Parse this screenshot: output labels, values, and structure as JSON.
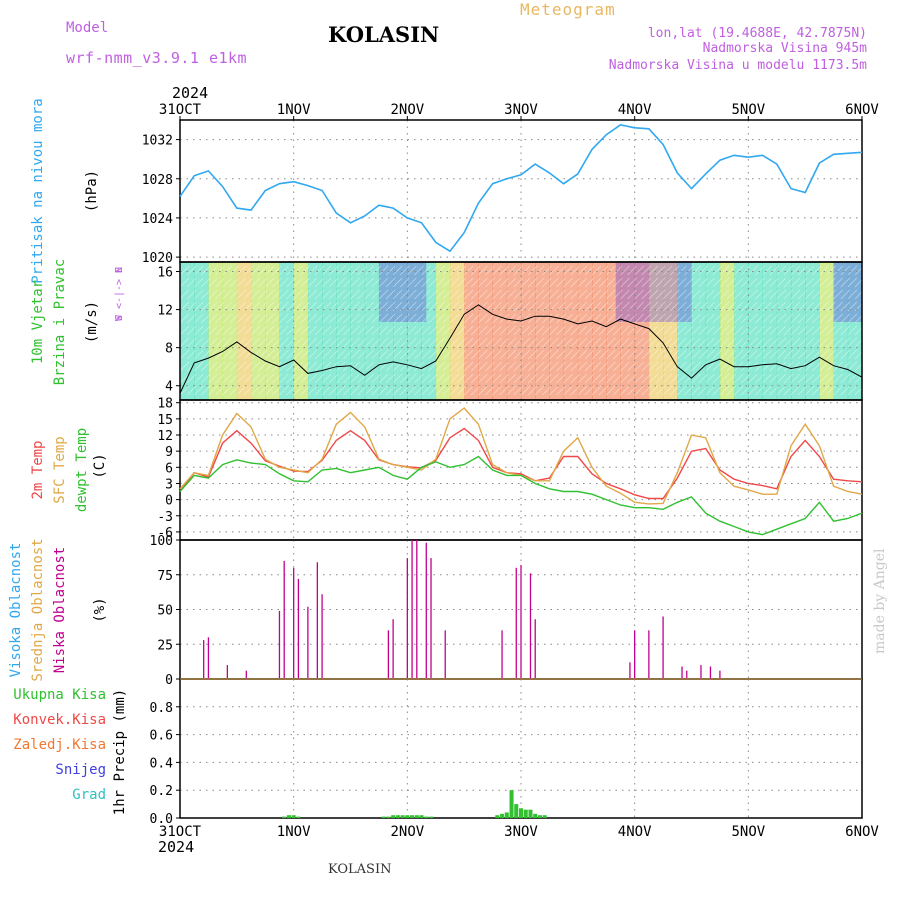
{
  "header": {
    "model_label": "Model",
    "model_name": "wrf-nmm_v3.9.1  e1km",
    "station": "KOLASIN",
    "meteogram": "Meteogram",
    "lonlat": "lon,lat (19.4688E, 42.7875N)",
    "elevation": "Nadmorska Visina 945m",
    "model_elevation": "Nadmorska Visina u modelu 1173.5m",
    "year_top": "2024",
    "year_bottom": "2024",
    "footer_station": "KOLASIN",
    "credit": "made by Angel"
  },
  "colors": {
    "pressure": "#30a8f0",
    "temp2m": "#f04848",
    "sfc_temp": "#e0a848",
    "dewpoint": "#30c030",
    "clouds_low": "#c00090",
    "precip_total": "#30c030",
    "label_purple": "#c060e0"
  },
  "chart_data": [
    {
      "type": "line",
      "panel": "pressure",
      "x_ticks": [
        "31OCT",
        "1NOV",
        "2NOV",
        "3NOV",
        "4NOV",
        "5NOV",
        "6NOV"
      ],
      "xlim_hours": [
        0,
        144
      ],
      "title_left": "Pritisak na nivou mora",
      "ylabel": "(hPa)",
      "ylim": [
        1019.5,
        1034
      ],
      "yticks": [
        1020,
        1024,
        1028,
        1032
      ],
      "series": [
        {
          "x": [
            0,
            3,
            6,
            9,
            12,
            15,
            18,
            21,
            24,
            27,
            30,
            33,
            36,
            39,
            42,
            45,
            48,
            51,
            54,
            57,
            60,
            63,
            66,
            69,
            72,
            75,
            78,
            81,
            84,
            87,
            90,
            93,
            96,
            99,
            102,
            105,
            108,
            111,
            114,
            117,
            120,
            123,
            126,
            129,
            132,
            135,
            138,
            141,
            144
          ],
          "values": [
            1026.2,
            1028.3,
            1028.8,
            1027.2,
            1025.0,
            1024.8,
            1026.8,
            1027.5,
            1027.7,
            1027.3,
            1026.8,
            1024.5,
            1023.5,
            1024.2,
            1025.3,
            1025.0,
            1024.0,
            1023.5,
            1021.5,
            1020.6,
            1022.5,
            1025.5,
            1027.5,
            1028.0,
            1028.4,
            1029.5,
            1028.6,
            1027.5,
            1028.5,
            1031.0,
            1032.5,
            1033.5,
            1033.2,
            1033.1,
            1031.5,
            1028.6,
            1027.0,
            1028.5,
            1029.9,
            1030.4,
            1030.2,
            1030.4,
            1029.5,
            1027.0,
            1026.6,
            1029.6,
            1030.5,
            1030.6,
            1030.7
          ]
        }
      ]
    },
    {
      "type": "line",
      "panel": "wind",
      "title_left": "10m Vjetar",
      "title_left2": "Brzina i Pravac",
      "ylabel": "(m/s)",
      "compass": [
        "N",
        "W <-|-> E",
        "S"
      ],
      "ylim": [
        2.5,
        17
      ],
      "yticks": [
        4,
        8,
        12,
        16
      ],
      "series": [
        {
          "name": "speed",
          "x": [
            0,
            3,
            6,
            9,
            12,
            15,
            18,
            21,
            24,
            27,
            30,
            33,
            36,
            39,
            42,
            45,
            48,
            51,
            54,
            57,
            60,
            63,
            66,
            69,
            72,
            75,
            78,
            81,
            84,
            87,
            90,
            93,
            96,
            99,
            102,
            105,
            108,
            111,
            114,
            117,
            120,
            123,
            126,
            129,
            132,
            135,
            138,
            141,
            144
          ],
          "values": [
            3.2,
            6.4,
            6.9,
            7.6,
            8.6,
            7.5,
            6.6,
            6.0,
            6.7,
            5.3,
            5.6,
            6.0,
            6.1,
            5.1,
            6.2,
            6.5,
            6.2,
            5.8,
            6.6,
            9.0,
            11.5,
            12.5,
            11.5,
            11.0,
            10.8,
            11.3,
            11.3,
            11.0,
            10.5,
            10.8,
            10.2,
            11.0,
            10.5,
            10.0,
            8.5,
            6.0,
            4.8,
            6.2,
            6.8,
            6.0,
            6.0,
            6.2,
            6.3,
            5.8,
            6.1,
            7.0,
            6.1,
            5.7,
            4.9
          ]
        }
      ]
    },
    {
      "type": "line",
      "panel": "temperature",
      "title_left": "2m Temp",
      "title_left2": "SFC Temp",
      "title_left3": "dewpt Temp",
      "ylabel": "(C)",
      "ylim": [
        -7.5,
        18.5
      ],
      "yticks": [
        -6,
        -3,
        0,
        3,
        6,
        9,
        12,
        15,
        18
      ],
      "x": [
        0,
        3,
        6,
        9,
        12,
        15,
        18,
        21,
        24,
        27,
        30,
        33,
        36,
        39,
        42,
        45,
        48,
        51,
        54,
        57,
        60,
        63,
        66,
        69,
        72,
        75,
        78,
        81,
        84,
        87,
        90,
        93,
        96,
        99,
        102,
        105,
        108,
        111,
        114,
        117,
        120,
        123,
        126,
        129,
        132,
        135,
        138,
        141,
        144
      ],
      "series": [
        {
          "name": "2m Temp",
          "values": [
            1.5,
            5.0,
            4.2,
            10.5,
            12.8,
            10.5,
            7.2,
            6.2,
            5.3,
            5.2,
            7.3,
            11.0,
            12.8,
            11.0,
            7.4,
            6.5,
            6.1,
            5.9,
            7.3,
            11.5,
            13.2,
            11.0,
            6.0,
            5.0,
            4.8,
            3.5,
            4.0,
            8.0,
            8.0,
            4.8,
            3.0,
            2.0,
            0.9,
            0.2,
            0.2,
            4.0,
            9.0,
            9.5,
            5.5,
            3.8,
            3.0,
            2.6,
            2.0,
            8.0,
            11.0,
            8.0,
            3.8,
            3.5,
            3.3
          ]
        },
        {
          "name": "SFC Temp",
          "values": [
            2.0,
            5.0,
            4.5,
            12.0,
            16.0,
            13.5,
            7.5,
            6.0,
            5.5,
            5.0,
            7.5,
            14.0,
            16.2,
            13.5,
            7.5,
            6.5,
            6.0,
            5.5,
            7.5,
            15.0,
            17.0,
            14.0,
            6.5,
            5.0,
            4.5,
            3.5,
            3.5,
            9.0,
            11.5,
            6.0,
            2.5,
            1.2,
            -0.5,
            -0.8,
            -0.7,
            5.0,
            12.0,
            11.5,
            5.0,
            2.5,
            1.8,
            1.0,
            1.0,
            10.0,
            14.0,
            10.0,
            2.5,
            1.5,
            1.0
          ]
        },
        {
          "name": "dewpt Temp",
          "values": [
            1.5,
            4.5,
            4.0,
            6.5,
            7.4,
            6.8,
            6.5,
            4.8,
            3.5,
            3.3,
            5.5,
            5.8,
            5.0,
            5.5,
            6.0,
            4.5,
            3.8,
            6.0,
            7.0,
            6.0,
            6.5,
            8.0,
            5.5,
            4.5,
            4.5,
            3.0,
            2.0,
            1.5,
            1.5,
            1.0,
            0.0,
            -1.0,
            -1.5,
            -1.5,
            -1.8,
            -0.5,
            0.5,
            -2.5,
            -4.0,
            -5.0,
            -6.0,
            -6.5,
            -5.5,
            -4.5,
            -3.5,
            -0.5,
            -4.0,
            -3.5,
            -2.5
          ]
        }
      ]
    },
    {
      "type": "bar",
      "panel": "clouds",
      "title_left": "Visoka Oblacnost",
      "title_left2": "Srednja Oblacnost",
      "title_left3": "Niska Oblacnost",
      "ylabel": "(%)",
      "ylim": [
        0,
        100
      ],
      "yticks": [
        0,
        25,
        50,
        75,
        100
      ],
      "series": [
        {
          "name": "Niska Oblacnost",
          "x": [
            5,
            6,
            10,
            14,
            21,
            22,
            24,
            25,
            27,
            29,
            30,
            44,
            45,
            48,
            49,
            50,
            52,
            53,
            56,
            68,
            71,
            72,
            74,
            75,
            95,
            96,
            99,
            102,
            106,
            107,
            110,
            112,
            114
          ],
          "values": [
            28,
            30,
            10,
            6,
            49,
            85,
            80,
            72,
            52,
            84,
            61,
            35,
            43,
            87,
            100,
            100,
            98,
            87,
            35,
            35,
            80,
            82,
            76,
            43,
            12,
            35,
            35,
            45,
            9,
            6,
            10,
            9,
            6
          ]
        }
      ]
    },
    {
      "type": "bar",
      "panel": "precip",
      "title_left": "Ukupna Kisa",
      "title_left2": "Konvek.Kisa",
      "title_left3": "Zaledj.Kisa",
      "title_left4": "Snijeg",
      "title_left5": "Grad",
      "ylabel": "1hr Precip (mm)",
      "ylim": [
        0,
        1.0
      ],
      "yticks": [
        0,
        0.2,
        0.4,
        0.6,
        0.8
      ],
      "series": [
        {
          "name": "Ukupna Kisa",
          "x": [
            22,
            23,
            24,
            25,
            43,
            44,
            45,
            46,
            47,
            48,
            49,
            50,
            51,
            52,
            53,
            67,
            68,
            69,
            70,
            71,
            72,
            73,
            74,
            75,
            76,
            77
          ],
          "values": [
            0.01,
            0.02,
            0.02,
            0.01,
            0.01,
            0.01,
            0.02,
            0.02,
            0.02,
            0.02,
            0.02,
            0.02,
            0.02,
            0.01,
            0.01,
            0.02,
            0.03,
            0.04,
            0.2,
            0.1,
            0.07,
            0.06,
            0.06,
            0.03,
            0.02,
            0.02
          ]
        }
      ]
    }
  ]
}
